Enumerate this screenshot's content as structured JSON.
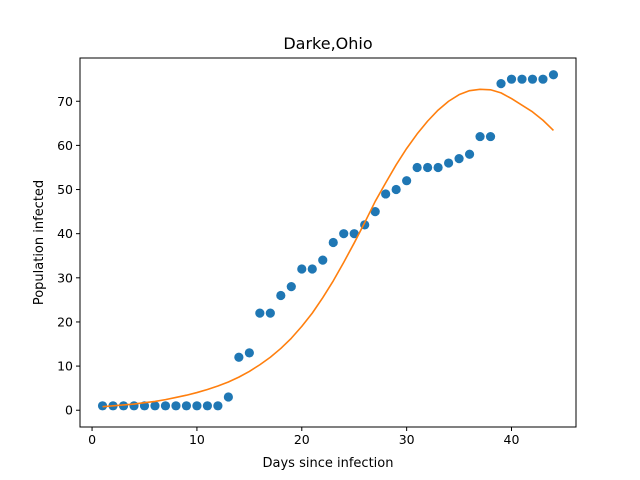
{
  "chart_data": {
    "type": "scatter",
    "title": "Darke,Ohio",
    "xlabel": "Days since infection",
    "ylabel": "Population infected",
    "xlim": [
      -1.15,
      46.15
    ],
    "ylim": [
      -3.8,
      79.8
    ],
    "xticks": [
      0,
      10,
      20,
      30,
      40
    ],
    "yticks": [
      0,
      10,
      20,
      30,
      40,
      50,
      60,
      70
    ],
    "grid": false,
    "series": [
      {
        "kind": "scatter",
        "color": "#1f77b4",
        "x": [
          1,
          2,
          3,
          4,
          5,
          6,
          7,
          8,
          9,
          10,
          11,
          12,
          13,
          14,
          15,
          16,
          17,
          18,
          19,
          20,
          21,
          22,
          23,
          24,
          25,
          26,
          27,
          28,
          29,
          30,
          31,
          32,
          33,
          34,
          35,
          36,
          37,
          38,
          39,
          40,
          41,
          42,
          43,
          44
        ],
        "y": [
          1,
          1,
          1,
          1,
          1,
          1,
          1,
          1,
          1,
          1,
          1,
          1,
          3,
          12,
          13,
          22,
          22,
          26,
          28,
          32,
          32,
          34,
          38,
          40,
          40,
          42,
          45,
          49,
          50,
          52,
          55,
          55,
          55,
          56,
          57,
          58,
          62,
          62,
          74,
          75,
          75,
          75,
          75,
          76
        ]
      },
      {
        "kind": "line",
        "color": "#ff7f0e",
        "x": [
          1,
          2,
          3,
          4,
          5,
          6,
          7,
          8,
          9,
          10,
          11,
          12,
          13,
          14,
          15,
          16,
          17,
          18,
          19,
          20,
          21,
          22,
          23,
          24,
          25,
          26,
          27,
          28,
          29,
          30,
          31,
          32,
          33,
          34,
          35,
          36,
          37,
          38,
          39,
          40,
          41,
          42,
          43,
          44
        ],
        "y": [
          0.8,
          1.0,
          1.2,
          1.4,
          1.7,
          2.0,
          2.4,
          2.9,
          3.4,
          4.0,
          4.7,
          5.5,
          6.4,
          7.5,
          8.8,
          10.3,
          12.0,
          14.0,
          16.3,
          19.0,
          22.0,
          25.5,
          29.3,
          33.5,
          37.9,
          42.5,
          47.3,
          51.5,
          55.6,
          59.3,
          62.6,
          65.5,
          68.0,
          70.0,
          71.5,
          72.4,
          72.7,
          72.6,
          71.9,
          70.6,
          69.1,
          67.6,
          65.7,
          63.4
        ]
      }
    ]
  }
}
